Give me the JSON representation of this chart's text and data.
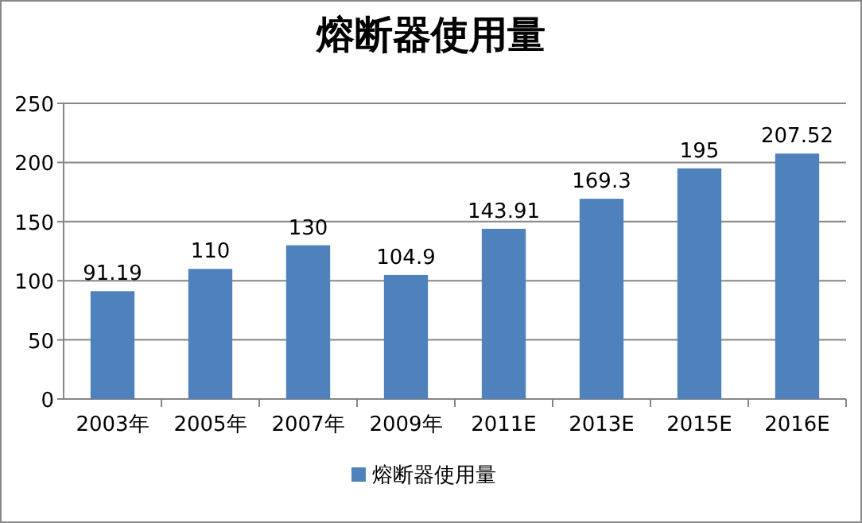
{
  "chart_data": {
    "type": "bar",
    "title": "熔断器使用量",
    "categories": [
      "2003年",
      "2005年",
      "2007年",
      "2009年",
      "2011E",
      "2013E",
      "2015E",
      "2016E"
    ],
    "series": [
      {
        "name": "熔断器使用量",
        "color": "#4f81bd",
        "values": [
          91.19,
          110,
          130,
          104.9,
          143.91,
          169.3,
          195,
          207.52
        ]
      }
    ],
    "ylim": [
      0,
      250
    ],
    "yticks": [
      0,
      50,
      100,
      150,
      200,
      250
    ],
    "grid": "y",
    "legend": "bottom",
    "data_labels": true
  }
}
